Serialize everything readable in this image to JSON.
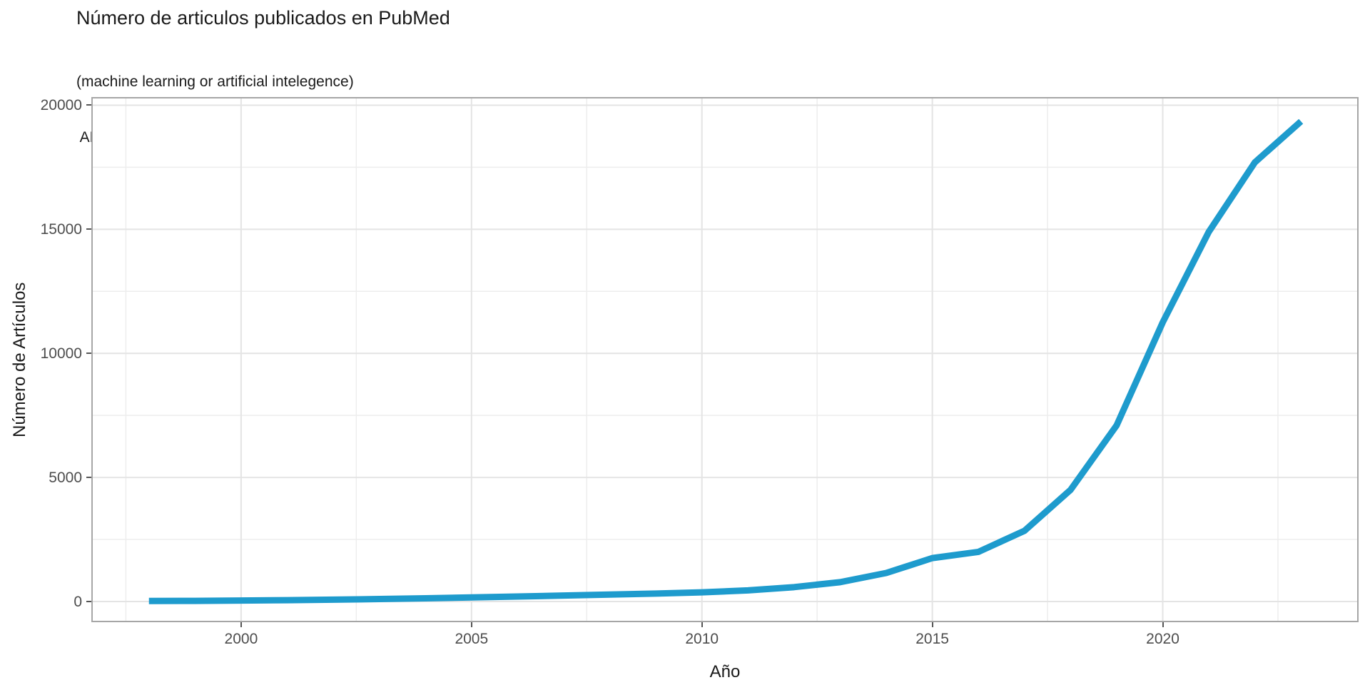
{
  "header": {
    "title": "Número de articulos publicados en PubMed",
    "subtitle_line1": "(machine learning or artificial intelegence)",
    "subtitle_line2": " AND (medicine OR health OR molecular biology OR genomics OR genetics OR omics)"
  },
  "chart_data": {
    "type": "line",
    "title": "Número de articulos publicados en PubMed",
    "subtitle": "(machine learning or artificial intelegence)\n AND (medicine OR health OR molecular biology OR genomics OR genetics OR omics)",
    "xlabel": "Año",
    "ylabel": "Número de Artículos",
    "legend": "none",
    "grid": "on",
    "x": [
      1998,
      1999,
      2000,
      2001,
      2002,
      2003,
      2004,
      2005,
      2006,
      2007,
      2008,
      2009,
      2010,
      2011,
      2012,
      2013,
      2014,
      2015,
      2016,
      2017,
      2018,
      2019,
      2020,
      2021,
      2022,
      2023
    ],
    "values": [
      20,
      25,
      40,
      55,
      75,
      100,
      130,
      165,
      200,
      240,
      280,
      320,
      370,
      450,
      580,
      780,
      1150,
      1750,
      2000,
      2850,
      4500,
      7100,
      11250,
      14900,
      17700,
      19350
    ],
    "axis": {
      "x_min": 1996.75,
      "x_max": 2024.25,
      "y_min": -834,
      "y_max": 20330,
      "x_major": [
        2000,
        2005,
        2010,
        2015,
        2020
      ],
      "x_minor": [
        1997.5,
        2002.5,
        2007.5,
        2012.5,
        2017.5,
        2022.5
      ],
      "y_major": [
        0,
        5000,
        10000,
        15000,
        20000
      ],
      "y_minor": [
        2500,
        7500,
        12500,
        17500
      ],
      "x_tick_labels": [
        "2000",
        "2005",
        "2010",
        "2015",
        "2020"
      ],
      "y_tick_labels": [
        "0",
        "5000",
        "10000",
        "15000",
        "20000"
      ]
    },
    "style": {
      "line_color": "#1E9BCD",
      "line_width": 9,
      "grid_major_color": "#E4E4E4",
      "grid_minor_color": "#EDEDED",
      "panel_border_color": "#A6A6A6",
      "tick_color": "#555555",
      "tick_label_color": "#4D4D4D",
      "text_color": "#1A1A1A",
      "background": "#FFFFFF"
    }
  }
}
